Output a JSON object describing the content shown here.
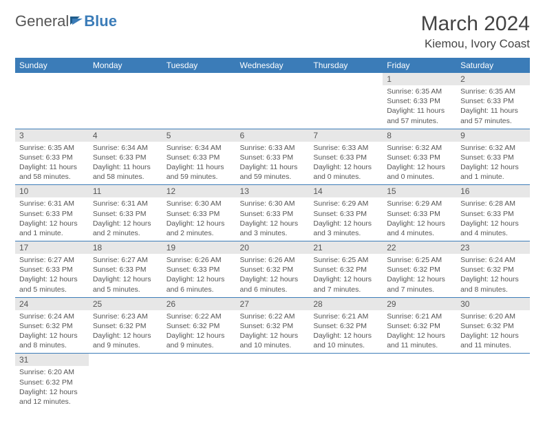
{
  "logo": {
    "text1": "General",
    "text2": "Blue"
  },
  "title": "March 2024",
  "location": "Kiemou, Ivory Coast",
  "colors": {
    "header_bg": "#3b7cb8",
    "daynum_bg": "#e7e7e7",
    "row_border": "#3b7cb8"
  },
  "weekdays": [
    "Sunday",
    "Monday",
    "Tuesday",
    "Wednesday",
    "Thursday",
    "Friday",
    "Saturday"
  ],
  "weeks": [
    [
      null,
      null,
      null,
      null,
      null,
      {
        "n": "1",
        "sr": "Sunrise: 6:35 AM",
        "ss": "Sunset: 6:33 PM",
        "dl": "Daylight: 11 hours and 57 minutes."
      },
      {
        "n": "2",
        "sr": "Sunrise: 6:35 AM",
        "ss": "Sunset: 6:33 PM",
        "dl": "Daylight: 11 hours and 57 minutes."
      }
    ],
    [
      {
        "n": "3",
        "sr": "Sunrise: 6:35 AM",
        "ss": "Sunset: 6:33 PM",
        "dl": "Daylight: 11 hours and 58 minutes."
      },
      {
        "n": "4",
        "sr": "Sunrise: 6:34 AM",
        "ss": "Sunset: 6:33 PM",
        "dl": "Daylight: 11 hours and 58 minutes."
      },
      {
        "n": "5",
        "sr": "Sunrise: 6:34 AM",
        "ss": "Sunset: 6:33 PM",
        "dl": "Daylight: 11 hours and 59 minutes."
      },
      {
        "n": "6",
        "sr": "Sunrise: 6:33 AM",
        "ss": "Sunset: 6:33 PM",
        "dl": "Daylight: 11 hours and 59 minutes."
      },
      {
        "n": "7",
        "sr": "Sunrise: 6:33 AM",
        "ss": "Sunset: 6:33 PM",
        "dl": "Daylight: 12 hours and 0 minutes."
      },
      {
        "n": "8",
        "sr": "Sunrise: 6:32 AM",
        "ss": "Sunset: 6:33 PM",
        "dl": "Daylight: 12 hours and 0 minutes."
      },
      {
        "n": "9",
        "sr": "Sunrise: 6:32 AM",
        "ss": "Sunset: 6:33 PM",
        "dl": "Daylight: 12 hours and 1 minute."
      }
    ],
    [
      {
        "n": "10",
        "sr": "Sunrise: 6:31 AM",
        "ss": "Sunset: 6:33 PM",
        "dl": "Daylight: 12 hours and 1 minute."
      },
      {
        "n": "11",
        "sr": "Sunrise: 6:31 AM",
        "ss": "Sunset: 6:33 PM",
        "dl": "Daylight: 12 hours and 2 minutes."
      },
      {
        "n": "12",
        "sr": "Sunrise: 6:30 AM",
        "ss": "Sunset: 6:33 PM",
        "dl": "Daylight: 12 hours and 2 minutes."
      },
      {
        "n": "13",
        "sr": "Sunrise: 6:30 AM",
        "ss": "Sunset: 6:33 PM",
        "dl": "Daylight: 12 hours and 3 minutes."
      },
      {
        "n": "14",
        "sr": "Sunrise: 6:29 AM",
        "ss": "Sunset: 6:33 PM",
        "dl": "Daylight: 12 hours and 3 minutes."
      },
      {
        "n": "15",
        "sr": "Sunrise: 6:29 AM",
        "ss": "Sunset: 6:33 PM",
        "dl": "Daylight: 12 hours and 4 minutes."
      },
      {
        "n": "16",
        "sr": "Sunrise: 6:28 AM",
        "ss": "Sunset: 6:33 PM",
        "dl": "Daylight: 12 hours and 4 minutes."
      }
    ],
    [
      {
        "n": "17",
        "sr": "Sunrise: 6:27 AM",
        "ss": "Sunset: 6:33 PM",
        "dl": "Daylight: 12 hours and 5 minutes."
      },
      {
        "n": "18",
        "sr": "Sunrise: 6:27 AM",
        "ss": "Sunset: 6:33 PM",
        "dl": "Daylight: 12 hours and 5 minutes."
      },
      {
        "n": "19",
        "sr": "Sunrise: 6:26 AM",
        "ss": "Sunset: 6:33 PM",
        "dl": "Daylight: 12 hours and 6 minutes."
      },
      {
        "n": "20",
        "sr": "Sunrise: 6:26 AM",
        "ss": "Sunset: 6:32 PM",
        "dl": "Daylight: 12 hours and 6 minutes."
      },
      {
        "n": "21",
        "sr": "Sunrise: 6:25 AM",
        "ss": "Sunset: 6:32 PM",
        "dl": "Daylight: 12 hours and 7 minutes."
      },
      {
        "n": "22",
        "sr": "Sunrise: 6:25 AM",
        "ss": "Sunset: 6:32 PM",
        "dl": "Daylight: 12 hours and 7 minutes."
      },
      {
        "n": "23",
        "sr": "Sunrise: 6:24 AM",
        "ss": "Sunset: 6:32 PM",
        "dl": "Daylight: 12 hours and 8 minutes."
      }
    ],
    [
      {
        "n": "24",
        "sr": "Sunrise: 6:24 AM",
        "ss": "Sunset: 6:32 PM",
        "dl": "Daylight: 12 hours and 8 minutes."
      },
      {
        "n": "25",
        "sr": "Sunrise: 6:23 AM",
        "ss": "Sunset: 6:32 PM",
        "dl": "Daylight: 12 hours and 9 minutes."
      },
      {
        "n": "26",
        "sr": "Sunrise: 6:22 AM",
        "ss": "Sunset: 6:32 PM",
        "dl": "Daylight: 12 hours and 9 minutes."
      },
      {
        "n": "27",
        "sr": "Sunrise: 6:22 AM",
        "ss": "Sunset: 6:32 PM",
        "dl": "Daylight: 12 hours and 10 minutes."
      },
      {
        "n": "28",
        "sr": "Sunrise: 6:21 AM",
        "ss": "Sunset: 6:32 PM",
        "dl": "Daylight: 12 hours and 10 minutes."
      },
      {
        "n": "29",
        "sr": "Sunrise: 6:21 AM",
        "ss": "Sunset: 6:32 PM",
        "dl": "Daylight: 12 hours and 11 minutes."
      },
      {
        "n": "30",
        "sr": "Sunrise: 6:20 AM",
        "ss": "Sunset: 6:32 PM",
        "dl": "Daylight: 12 hours and 11 minutes."
      }
    ],
    [
      {
        "n": "31",
        "sr": "Sunrise: 6:20 AM",
        "ss": "Sunset: 6:32 PM",
        "dl": "Daylight: 12 hours and 12 minutes."
      },
      null,
      null,
      null,
      null,
      null,
      null
    ]
  ]
}
